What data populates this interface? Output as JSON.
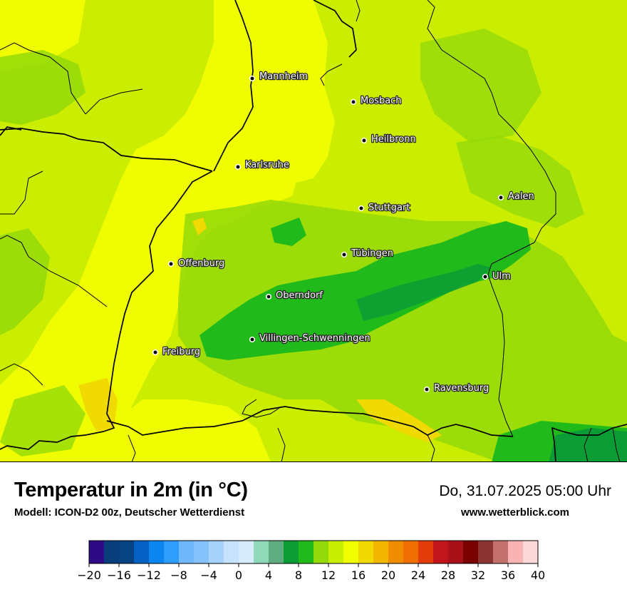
{
  "title": "Temperatur in 2m (in °C)",
  "subtitle": "Modell: ICON-D2 00z, Deutscher Wetterdienst",
  "datetime": "Do, 31.07.2025 05:00 Uhr",
  "website": "www.wetterblick.com",
  "cities": [
    {
      "name": "Mannheim",
      "id": "mannheim"
    },
    {
      "name": "Mosbach",
      "id": "mosbach"
    },
    {
      "name": "Heilbronn",
      "id": "heilbronn"
    },
    {
      "name": "Karlsruhe",
      "id": "karlsruhe"
    },
    {
      "name": "Aalen",
      "id": "aalen"
    },
    {
      "name": "Stuttgart",
      "id": "stuttgart"
    },
    {
      "name": "Tübingen",
      "id": "tuebingen"
    },
    {
      "name": "Offenburg",
      "id": "offenburg"
    },
    {
      "name": "Ulm",
      "id": "ulm"
    },
    {
      "name": "Oberndorf",
      "id": "oberndorf"
    },
    {
      "name": "Villingen-Schwenningen",
      "id": "villingen"
    },
    {
      "name": "Freiburg",
      "id": "freiburg"
    },
    {
      "name": "Ravensburg",
      "id": "ravensburg"
    }
  ],
  "legend": {
    "min": -20,
    "max": 40,
    "ticks": [
      "−20",
      "−16",
      "−12",
      "−8",
      "−4",
      "0",
      "4",
      "8",
      "12",
      "16",
      "20",
      "24",
      "28",
      "32",
      "36",
      "40"
    ],
    "colors": [
      "#2e0a86",
      "#0a3e7a",
      "#074283",
      "#0562c4",
      "#0b86f1",
      "#2f9dfb",
      "#70b8fb",
      "#85c1fb",
      "#a6d2fb",
      "#c6e2fd",
      "#d9ecfd",
      "#8fd8b9",
      "#5fae82",
      "#0c9c36",
      "#20bb1a",
      "#94d90a",
      "#c9ef00",
      "#f1fe00",
      "#f1da01",
      "#f1b500",
      "#f18e00",
      "#ef6f02",
      "#e33b0a",
      "#c2141d",
      "#a8101a",
      "#7a0000",
      "#8c3333",
      "#c4706d",
      "#fab3b3",
      "#fcd9d9"
    ]
  }
}
